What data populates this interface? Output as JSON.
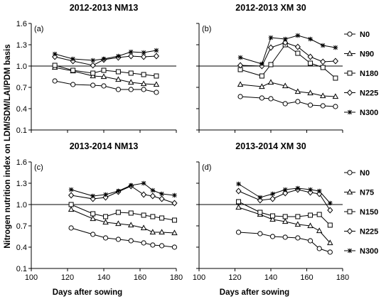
{
  "chart_data": [
    {
      "type": "line",
      "title": "2012-2013  NM13",
      "panel_label": "(a)",
      "xlim": [
        100,
        180
      ],
      "ylim": [
        0.1,
        1.6
      ],
      "series": [
        {
          "name": "N0",
          "marker": "circle",
          "x": [
            113,
            123,
            134,
            140,
            148,
            155,
            162,
            169
          ],
          "y": [
            0.79,
            0.74,
            0.73,
            0.72,
            0.67,
            0.67,
            0.67,
            0.63
          ]
        },
        {
          "name": "N90",
          "marker": "triangle",
          "x": [
            113,
            123,
            134,
            140,
            148,
            155,
            162,
            169
          ],
          "y": [
            0.98,
            0.93,
            0.86,
            0.85,
            0.81,
            0.77,
            0.75,
            0.74
          ]
        },
        {
          "name": "N180",
          "marker": "square",
          "x": [
            113,
            123,
            134,
            140,
            148,
            155,
            162,
            169
          ],
          "y": [
            1.01,
            0.94,
            0.9,
            0.94,
            0.92,
            0.9,
            0.88,
            0.86
          ]
        },
        {
          "name": "N225",
          "marker": "diamond",
          "x": [
            113,
            123,
            134,
            140,
            148,
            155,
            162,
            169
          ],
          "y": [
            1.13,
            1.07,
            1.01,
            1.09,
            1.12,
            1.14,
            1.13,
            1.14
          ]
        },
        {
          "name": "N300",
          "marker": "asterisk",
          "x": [
            113,
            123,
            134,
            140,
            148,
            155,
            162,
            169
          ],
          "y": [
            1.17,
            1.1,
            1.08,
            1.1,
            1.14,
            1.2,
            1.19,
            1.22
          ]
        }
      ]
    },
    {
      "type": "line",
      "title": "2012-2013 XM 30",
      "panel_label": "(b)",
      "xlim": [
        100,
        180
      ],
      "ylim": [
        0.1,
        1.6
      ],
      "legend": [
        "N0",
        "N90",
        "N180",
        "N225",
        "N300"
      ],
      "series": [
        {
          "name": "N0",
          "marker": "circle",
          "x": [
            123,
            135,
            140,
            148,
            155,
            162,
            169,
            176
          ],
          "y": [
            0.57,
            0.55,
            0.54,
            0.47,
            0.5,
            0.45,
            0.44,
            0.43
          ]
        },
        {
          "name": "N90",
          "marker": "triangle",
          "x": [
            123,
            135,
            140,
            148,
            155,
            162,
            169,
            176
          ],
          "y": [
            0.74,
            0.71,
            0.77,
            0.72,
            0.64,
            0.62,
            0.58,
            0.57
          ]
        },
        {
          "name": "N180",
          "marker": "square",
          "x": [
            123,
            135,
            140,
            148,
            155,
            162,
            169,
            176
          ],
          "y": [
            0.95,
            0.86,
            1.02,
            1.3,
            1.18,
            1.04,
            0.98,
            0.83
          ]
        },
        {
          "name": "N225",
          "marker": "diamond",
          "x": [
            123,
            135,
            140,
            148,
            155,
            162,
            169,
            176
          ],
          "y": [
            1.01,
            1.0,
            1.26,
            1.33,
            1.27,
            1.13,
            1.06,
            1.07
          ]
        },
        {
          "name": "N300",
          "marker": "asterisk",
          "x": [
            123,
            135,
            140,
            148,
            155,
            162,
            169,
            176
          ],
          "y": [
            1.12,
            1.03,
            1.4,
            1.38,
            1.43,
            1.38,
            1.29,
            1.26
          ]
        }
      ]
    },
    {
      "type": "line",
      "title": "2013-2014 NM13",
      "panel_label": "(c)",
      "xlim": [
        100,
        180
      ],
      "ylim": [
        0.1,
        1.6
      ],
      "series": [
        {
          "name": "N0",
          "marker": "circle",
          "x": [
            122,
            134,
            141,
            148,
            155,
            162,
            167,
            172,
            179
          ],
          "y": [
            0.67,
            0.58,
            0.53,
            0.51,
            0.49,
            0.46,
            0.43,
            0.42,
            0.4
          ]
        },
        {
          "name": "N75",
          "marker": "triangle",
          "x": [
            122,
            134,
            141,
            148,
            155,
            162,
            167,
            172,
            179
          ],
          "y": [
            0.93,
            0.8,
            0.75,
            0.73,
            0.71,
            0.67,
            0.61,
            0.61,
            0.6
          ]
        },
        {
          "name": "N150",
          "marker": "square",
          "x": [
            122,
            134,
            141,
            148,
            155,
            162,
            167,
            172,
            179
          ],
          "y": [
            1.0,
            0.87,
            0.83,
            0.89,
            0.88,
            0.85,
            0.83,
            0.81,
            0.78
          ]
        },
        {
          "name": "N225",
          "marker": "diamond",
          "x": [
            122,
            134,
            141,
            148,
            155,
            162,
            167,
            172,
            179
          ],
          "y": [
            1.13,
            1.08,
            1.1,
            1.18,
            1.26,
            1.14,
            1.12,
            1.08,
            1.02
          ]
        },
        {
          "name": "N300",
          "marker": "asterisk",
          "x": [
            122,
            134,
            141,
            148,
            155,
            162,
            167,
            172,
            179
          ],
          "y": [
            1.21,
            1.12,
            1.14,
            1.19,
            1.27,
            1.3,
            1.2,
            1.15,
            1.13
          ]
        }
      ]
    },
    {
      "type": "line",
      "title": "2013-2014 XM 30",
      "panel_label": "(d)",
      "xlim": [
        100,
        180
      ],
      "ylim": [
        0.1,
        1.6
      ],
      "legend": [
        "N0",
        "N75",
        "N150",
        "N225",
        "N300"
      ],
      "series": [
        {
          "name": "N0",
          "marker": "circle",
          "x": [
            122,
            134,
            141,
            148,
            155,
            162,
            167,
            173
          ],
          "y": [
            0.61,
            0.59,
            0.55,
            0.54,
            0.53,
            0.49,
            0.38,
            0.33
          ]
        },
        {
          "name": "N75",
          "marker": "triangle",
          "x": [
            122,
            134,
            141,
            148,
            155,
            162,
            167,
            173
          ],
          "y": [
            0.96,
            0.86,
            0.79,
            0.76,
            0.72,
            0.7,
            0.63,
            0.46
          ]
        },
        {
          "name": "N150",
          "marker": "square",
          "x": [
            122,
            134,
            141,
            148,
            155,
            162,
            167,
            173
          ],
          "y": [
            1.04,
            0.89,
            0.84,
            0.83,
            0.83,
            0.85,
            0.86,
            0.71
          ]
        },
        {
          "name": "N225",
          "marker": "diamond",
          "x": [
            122,
            134,
            141,
            148,
            155,
            162,
            167,
            173
          ],
          "y": [
            1.19,
            1.06,
            1.08,
            1.16,
            1.21,
            1.17,
            1.15,
            0.92
          ]
        },
        {
          "name": "N300",
          "marker": "asterisk",
          "x": [
            122,
            134,
            141,
            148,
            155,
            162,
            167,
            173
          ],
          "y": [
            1.29,
            1.1,
            1.15,
            1.21,
            1.23,
            1.21,
            1.19,
            1.02
          ]
        }
      ]
    }
  ],
  "labels": {
    "ylabel": "Nitrogen nutrition index on LDM/SDM/LAI/PDM basis",
    "xlabel_left": "Days after sowing",
    "xlabel_right": "Days after sowing"
  },
  "axes": {
    "y_ticks": [
      "0.1",
      "0.4",
      "0.7",
      "1.0",
      "1.3",
      "1.6"
    ],
    "x_ticks": [
      "100",
      "120",
      "140",
      "160",
      "180"
    ],
    "reference_y": 1.0
  }
}
